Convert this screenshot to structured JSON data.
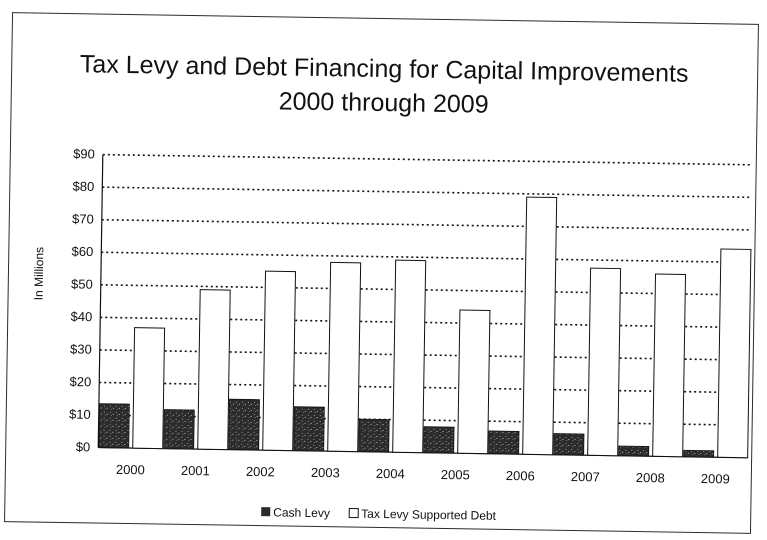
{
  "chart_data": {
    "type": "bar",
    "title": "Tax Levy and Debt Financing for Capital Improvements",
    "subtitle": "2000 through 2009",
    "xlabel": "",
    "ylabel": "In Millions",
    "ylim": [
      0,
      90
    ],
    "yticks": [
      "$0",
      "$10",
      "$20",
      "$30",
      "$40",
      "$50",
      "$60",
      "$70",
      "$80",
      "$90"
    ],
    "categories": [
      "2000",
      "2001",
      "2002",
      "2003",
      "2004",
      "2005",
      "2006",
      "2007",
      "2008",
      "2009"
    ],
    "series": [
      {
        "name": "Cash Levy",
        "color": "#3a3a3a",
        "values": [
          13.5,
          12,
          15.5,
          13.5,
          10,
          8,
          7,
          6.5,
          3,
          2
        ]
      },
      {
        "name": "Tax Levy Supported Debt",
        "color": "#ffffff",
        "values": [
          37,
          49,
          55,
          58,
          59,
          44,
          79,
          57.5,
          56,
          64
        ]
      }
    ],
    "legend_marker_labels": [
      "■",
      "□"
    ],
    "grid": true,
    "legend_position": "bottom"
  }
}
